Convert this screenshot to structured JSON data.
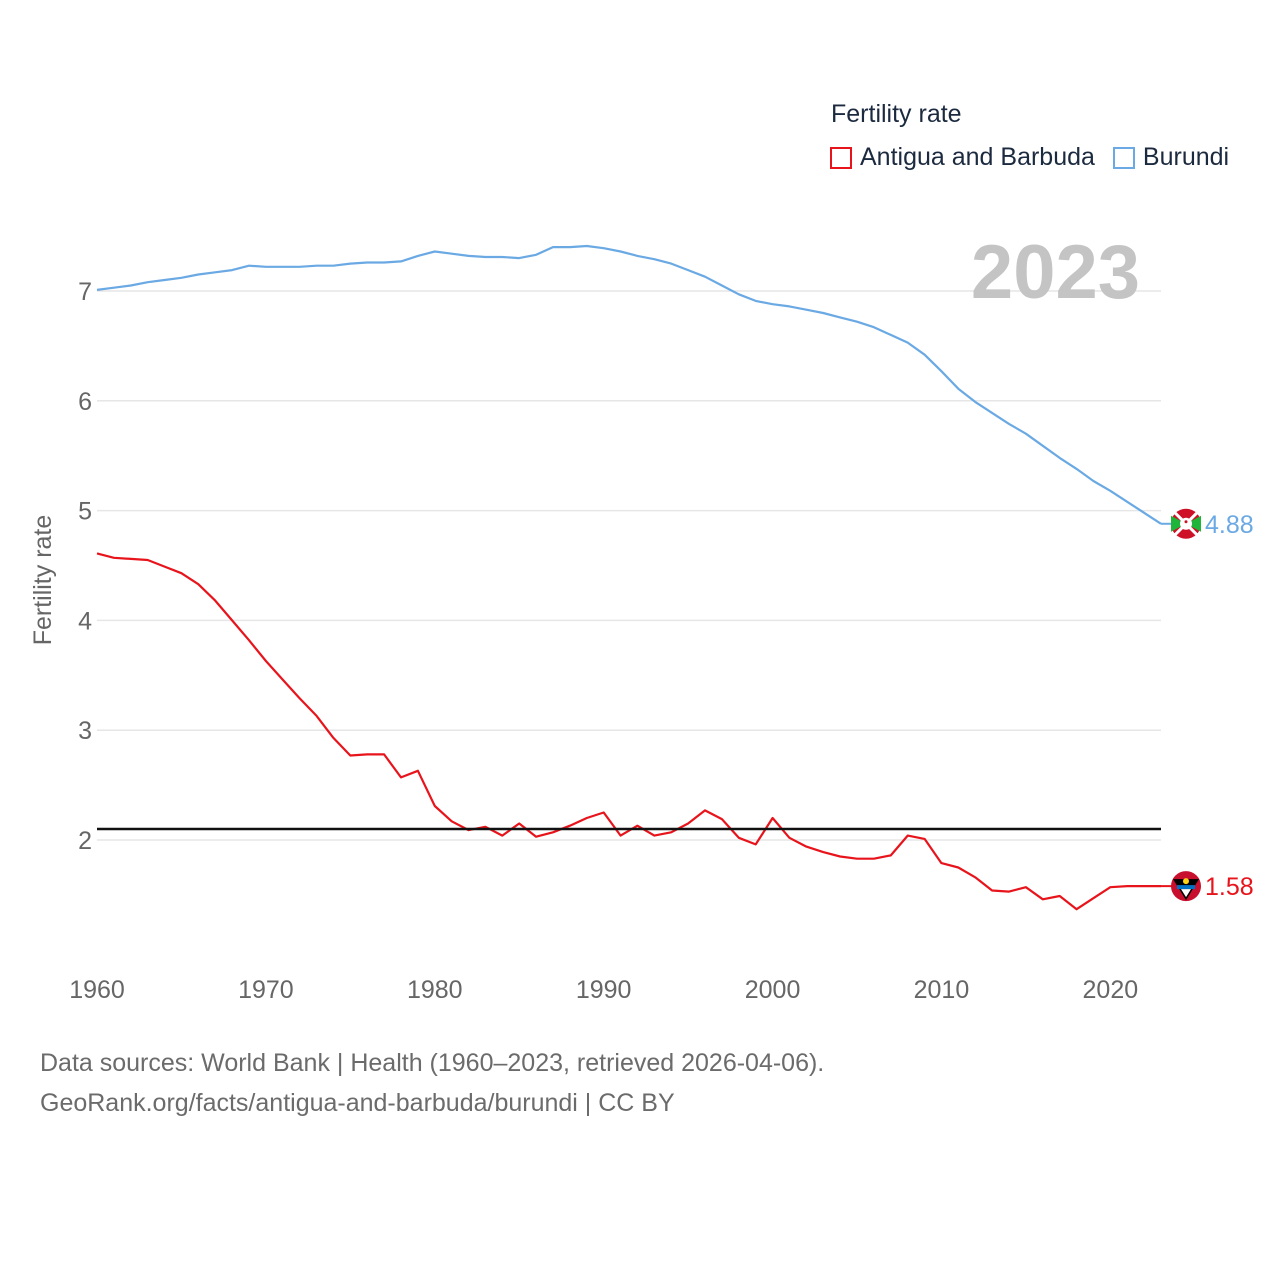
{
  "chart_data": {
    "type": "line",
    "title": "Fertility rate",
    "ylabel": "Fertility rate",
    "xlabel": "",
    "year_label": "2023",
    "xlim": [
      1960,
      2023
    ],
    "ylim": [
      1.0,
      7.7
    ],
    "x_ticks": [
      "1960",
      "1970",
      "1980",
      "1990",
      "2000",
      "2010",
      "2020"
    ],
    "y_ticks": [
      "2",
      "3",
      "4",
      "5",
      "6",
      "7"
    ],
    "reference_line": 2.1,
    "x": [
      1960,
      1961,
      1962,
      1963,
      1964,
      1965,
      1966,
      1967,
      1968,
      1969,
      1970,
      1971,
      1972,
      1973,
      1974,
      1975,
      1976,
      1977,
      1978,
      1979,
      1980,
      1981,
      1982,
      1983,
      1984,
      1985,
      1986,
      1987,
      1988,
      1989,
      1990,
      1991,
      1992,
      1993,
      1994,
      1995,
      1996,
      1997,
      1998,
      1999,
      2000,
      2001,
      2002,
      2003,
      2004,
      2005,
      2006,
      2007,
      2008,
      2009,
      2010,
      2011,
      2012,
      2013,
      2014,
      2015,
      2016,
      2017,
      2018,
      2019,
      2020,
      2021,
      2022,
      2023
    ],
    "series": [
      {
        "name": "Antigua and Barbuda",
        "color": "#e8141c",
        "end_label": "1.58",
        "values": [
          4.61,
          4.57,
          4.56,
          4.55,
          4.49,
          4.43,
          4.33,
          4.18,
          4.0,
          3.82,
          3.63,
          3.46,
          3.29,
          3.13,
          2.93,
          2.77,
          2.78,
          2.78,
          2.57,
          2.63,
          2.31,
          2.17,
          2.09,
          2.12,
          2.04,
          2.15,
          2.03,
          2.07,
          2.13,
          2.2,
          2.25,
          2.04,
          2.13,
          2.04,
          2.07,
          2.15,
          2.27,
          2.19,
          2.02,
          1.96,
          2.2,
          2.02,
          1.94,
          1.89,
          1.85,
          1.83,
          1.83,
          1.86,
          2.04,
          2.01,
          1.79,
          1.75,
          1.66,
          1.54,
          1.53,
          1.57,
          1.46,
          1.49,
          1.37,
          1.47,
          1.57,
          1.58,
          1.58,
          1.58
        ]
      },
      {
        "name": "Burundi",
        "color": "#6aa9e3",
        "end_label": "4.88",
        "values": [
          7.01,
          7.03,
          7.05,
          7.08,
          7.1,
          7.12,
          7.15,
          7.17,
          7.19,
          7.23,
          7.22,
          7.22,
          7.22,
          7.23,
          7.23,
          7.25,
          7.26,
          7.26,
          7.27,
          7.32,
          7.36,
          7.34,
          7.32,
          7.31,
          7.31,
          7.3,
          7.33,
          7.4,
          7.4,
          7.41,
          7.39,
          7.36,
          7.32,
          7.29,
          7.25,
          7.19,
          7.13,
          7.05,
          6.97,
          6.91,
          6.88,
          6.86,
          6.83,
          6.8,
          6.76,
          6.72,
          6.67,
          6.6,
          6.53,
          6.42,
          6.27,
          6.11,
          5.99,
          5.89,
          5.79,
          5.7,
          5.59,
          5.48,
          5.38,
          5.27,
          5.18,
          5.08,
          4.98,
          4.88
        ]
      }
    ]
  },
  "footer": {
    "line1": "Data sources: World Bank | Health (1960–2023, retrieved 2026-04-06).",
    "line2": "GeoRank.org/facts/antigua-and-barbuda/burundi | CC BY"
  }
}
